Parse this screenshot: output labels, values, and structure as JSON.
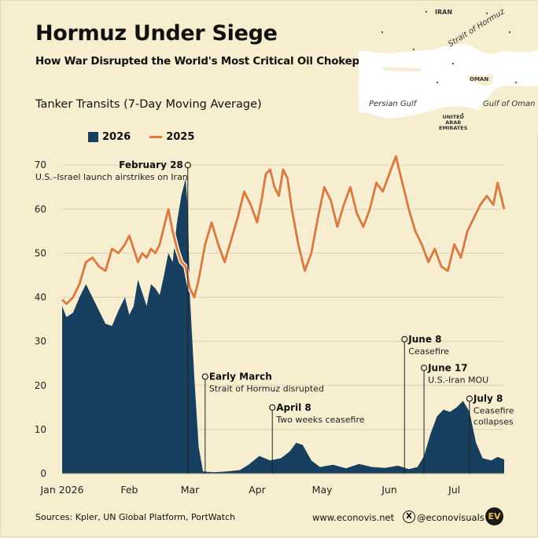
{
  "title": "Hormuz Under Siege",
  "subtitle": "How War Disrupted the World's Most Critical Oil Chokepoint",
  "footer": {
    "sources": "Sources: Kpler, UN Global Platform, PortWatch",
    "website": "www.econovis.net",
    "handle": "@econovisuals",
    "x_icon": "X",
    "logo": "EV"
  },
  "map": {
    "labels": {
      "iran": "IRAN",
      "strait": "Strait of Hormuz",
      "persian_gulf": "Persian Gulf",
      "gulf_of_oman": "Gulf of Oman",
      "oman": "OMAN",
      "uae": "UNITED\nARAB\nEMIRATES"
    }
  },
  "colors": {
    "area_2026": "#173f5f",
    "line_2025": "#e07b39",
    "background": "#f7edcf"
  },
  "chart_data": {
    "type": "area",
    "title": "Tanker Transits (7-Day Moving Average)",
    "ylim": [
      0,
      72
    ],
    "yticks": [
      0,
      10,
      20,
      30,
      40,
      50,
      60,
      70
    ],
    "xlim": [
      "2026-01-01",
      "2026-07-24"
    ],
    "xticks": [
      {
        "date": "2026-01-01",
        "label": "Jan 2026"
      },
      {
        "date": "2026-02-01",
        "label": "Feb"
      },
      {
        "date": "2026-03-01",
        "label": "Mar"
      },
      {
        "date": "2026-04-01",
        "label": "Apr"
      },
      {
        "date": "2026-05-01",
        "label": "May"
      },
      {
        "date": "2026-06-01",
        "label": "Jun"
      },
      {
        "date": "2026-07-01",
        "label": "Jul"
      }
    ],
    "grid": true,
    "legend_position": "top-left",
    "series": [
      {
        "name": "2026",
        "style": "area",
        "points": [
          [
            "2026-01-01",
            38
          ],
          [
            "2026-01-03",
            35.5
          ],
          [
            "2026-01-06",
            36.5
          ],
          [
            "2026-01-09",
            40
          ],
          [
            "2026-01-12",
            43
          ],
          [
            "2026-01-15",
            40
          ],
          [
            "2026-01-18",
            37
          ],
          [
            "2026-01-21",
            34
          ],
          [
            "2026-01-24",
            33.5
          ],
          [
            "2026-01-27",
            37
          ],
          [
            "2026-01-30",
            40
          ],
          [
            "2026-02-01",
            36
          ],
          [
            "2026-02-03",
            38
          ],
          [
            "2026-02-05",
            44
          ],
          [
            "2026-02-07",
            41
          ],
          [
            "2026-02-09",
            38
          ],
          [
            "2026-02-11",
            43
          ],
          [
            "2026-02-13",
            42
          ],
          [
            "2026-02-15",
            40.5
          ],
          [
            "2026-02-17",
            45
          ],
          [
            "2026-02-19",
            50
          ],
          [
            "2026-02-21",
            48
          ],
          [
            "2026-02-23",
            57
          ],
          [
            "2026-02-25",
            63
          ],
          [
            "2026-02-27",
            67
          ],
          [
            "2026-02-28",
            60
          ],
          [
            "2026-03-01",
            40
          ],
          [
            "2026-03-03",
            22
          ],
          [
            "2026-03-05",
            6
          ],
          [
            "2026-03-07",
            0.5
          ],
          [
            "2026-03-12",
            0.3
          ],
          [
            "2026-03-18",
            0.5
          ],
          [
            "2026-03-24",
            0.8
          ],
          [
            "2026-03-28",
            2
          ],
          [
            "2026-04-02",
            4
          ],
          [
            "2026-04-07",
            3
          ],
          [
            "2026-04-12",
            3.5
          ],
          [
            "2026-04-16",
            5
          ],
          [
            "2026-04-19",
            7
          ],
          [
            "2026-04-22",
            6.5
          ],
          [
            "2026-04-26",
            3
          ],
          [
            "2026-04-30",
            1.5
          ],
          [
            "2026-05-06",
            2
          ],
          [
            "2026-05-12",
            1.2
          ],
          [
            "2026-05-18",
            2.2
          ],
          [
            "2026-05-24",
            1.5
          ],
          [
            "2026-05-30",
            1.3
          ],
          [
            "2026-06-05",
            1.8
          ],
          [
            "2026-06-10",
            1
          ],
          [
            "2026-06-14",
            1.5
          ],
          [
            "2026-06-17",
            4
          ],
          [
            "2026-06-20",
            9
          ],
          [
            "2026-06-23",
            13
          ],
          [
            "2026-06-26",
            14.5
          ],
          [
            "2026-06-29",
            14
          ],
          [
            "2026-07-02",
            15
          ],
          [
            "2026-07-05",
            16.5
          ],
          [
            "2026-07-08",
            14
          ],
          [
            "2026-07-11",
            7
          ],
          [
            "2026-07-14",
            3.5
          ],
          [
            "2026-07-18",
            3
          ],
          [
            "2026-07-21",
            3.8
          ],
          [
            "2026-07-24",
            3.2
          ]
        ]
      },
      {
        "name": "2025",
        "style": "line",
        "points": [
          [
            "2026-01-01",
            39.5
          ],
          [
            "2026-01-03",
            38.5
          ],
          [
            "2026-01-06",
            40
          ],
          [
            "2026-01-09",
            43
          ],
          [
            "2026-01-12",
            48
          ],
          [
            "2026-01-15",
            49
          ],
          [
            "2026-01-18",
            47
          ],
          [
            "2026-01-21",
            46
          ],
          [
            "2026-01-24",
            51
          ],
          [
            "2026-01-27",
            50
          ],
          [
            "2026-01-30",
            52
          ],
          [
            "2026-02-01",
            54
          ],
          [
            "2026-02-03",
            51
          ],
          [
            "2026-02-05",
            48
          ],
          [
            "2026-02-07",
            50
          ],
          [
            "2026-02-09",
            49
          ],
          [
            "2026-02-11",
            51
          ],
          [
            "2026-02-13",
            50
          ],
          [
            "2026-02-15",
            52
          ],
          [
            "2026-02-17",
            56
          ],
          [
            "2026-02-19",
            60
          ],
          [
            "2026-02-21",
            55
          ],
          [
            "2026-02-23",
            51
          ],
          [
            "2026-02-25",
            48
          ],
          [
            "2026-02-27",
            47
          ],
          [
            "2026-03-01",
            42
          ],
          [
            "2026-03-03",
            40
          ],
          [
            "2026-03-05",
            44
          ],
          [
            "2026-03-08",
            52
          ],
          [
            "2026-03-11",
            57
          ],
          [
            "2026-03-14",
            52
          ],
          [
            "2026-03-17",
            48
          ],
          [
            "2026-03-20",
            53
          ],
          [
            "2026-03-23",
            58
          ],
          [
            "2026-03-26",
            64
          ],
          [
            "2026-03-29",
            61
          ],
          [
            "2026-04-01",
            57
          ],
          [
            "2026-04-03",
            62
          ],
          [
            "2026-04-05",
            68
          ],
          [
            "2026-04-07",
            69
          ],
          [
            "2026-04-09",
            65
          ],
          [
            "2026-04-11",
            63
          ],
          [
            "2026-04-13",
            69
          ],
          [
            "2026-04-15",
            67
          ],
          [
            "2026-04-17",
            60
          ],
          [
            "2026-04-20",
            52
          ],
          [
            "2026-04-23",
            46
          ],
          [
            "2026-04-26",
            50
          ],
          [
            "2026-04-29",
            58
          ],
          [
            "2026-05-02",
            65
          ],
          [
            "2026-05-05",
            62
          ],
          [
            "2026-05-08",
            56
          ],
          [
            "2026-05-11",
            61
          ],
          [
            "2026-05-14",
            65
          ],
          [
            "2026-05-17",
            59
          ],
          [
            "2026-05-20",
            56
          ],
          [
            "2026-05-23",
            60
          ],
          [
            "2026-05-26",
            66
          ],
          [
            "2026-05-29",
            64
          ],
          [
            "2026-06-01",
            68
          ],
          [
            "2026-06-04",
            72
          ],
          [
            "2026-06-07",
            66
          ],
          [
            "2026-06-10",
            60
          ],
          [
            "2026-06-13",
            55
          ],
          [
            "2026-06-16",
            52
          ],
          [
            "2026-06-19",
            48
          ],
          [
            "2026-06-22",
            51
          ],
          [
            "2026-06-25",
            47
          ],
          [
            "2026-06-28",
            46
          ],
          [
            "2026-07-01",
            52
          ],
          [
            "2026-07-04",
            49
          ],
          [
            "2026-07-07",
            55
          ],
          [
            "2026-07-10",
            58
          ],
          [
            "2026-07-13",
            61
          ],
          [
            "2026-07-16",
            63
          ],
          [
            "2026-07-19",
            61
          ],
          [
            "2026-07-21",
            66
          ],
          [
            "2026-07-24",
            60
          ]
        ]
      }
    ],
    "annotations": [
      {
        "date": "2026-02-28",
        "y": 70,
        "label": "February 28",
        "text": "U.S.–Israel launch airstrikes on Iran",
        "align": "center"
      },
      {
        "date": "2026-03-08",
        "y": 22,
        "label": "Early March",
        "text": "Strait of Hormuz disrupted",
        "align": "left"
      },
      {
        "date": "2026-04-08",
        "y": 15,
        "label": "April 8",
        "text": "Two weeks ceasefire",
        "align": "left"
      },
      {
        "date": "2026-06-08",
        "y": 30.5,
        "label": "June 8",
        "text": "Ceasefire",
        "align": "left"
      },
      {
        "date": "2026-06-17",
        "y": 24,
        "label": "June 17",
        "text": "U.S.-Iran MOU",
        "align": "left"
      },
      {
        "date": "2026-07-08",
        "y": 17,
        "label": "July 8",
        "text": "Ceasefire\ncollapses",
        "align": "left"
      }
    ]
  }
}
